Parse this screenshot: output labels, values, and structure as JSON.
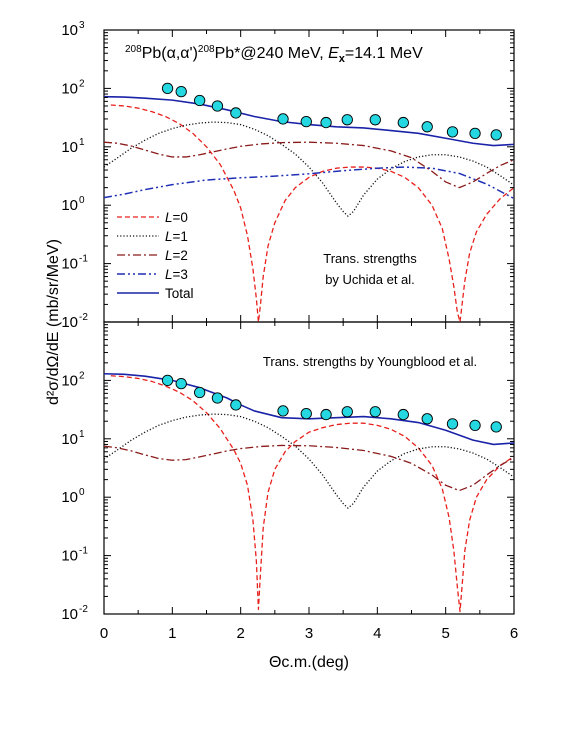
{
  "figure": {
    "ylabel": "d²σ/dΩ/dE (mb/sr/MeV)",
    "xlabel": "Θc.m.(deg)"
  },
  "colors": {
    "L0": "#e8201c",
    "L1": "#111111",
    "L2": "#8b1a1a",
    "L3": "#1f2fb5",
    "total": "#1a23a8",
    "data_fill": "#24d7e0",
    "data_stroke": "#000000"
  },
  "chart_data": [
    {
      "type": "line",
      "title": "208Pb(α,α')208Pb*@240 MeV, Ex=14.1 MeV",
      "title_parts": {
        "pre_mass": "208",
        "reaction": "Pb(α,α')",
        "post_mass": "208",
        "rest": "Pb*@240 MeV, ",
        "ex_E": "E",
        "ex_sub": "x",
        "ex_value": "=14.1 MeV"
      },
      "annotation": [
        "Trans. strengths",
        "by Uchida et al."
      ],
      "xlim": [
        0,
        6
      ],
      "ylim": [
        0.01,
        1000
      ],
      "yscale": "log",
      "x_ticks": [
        "0",
        "1",
        "2",
        "3",
        "4",
        "5",
        "6"
      ],
      "y_ticks": [
        {
          "base": "10",
          "exp": "-2"
        },
        {
          "base": "10",
          "exp": "-1"
        },
        {
          "base": "10",
          "exp": "0"
        },
        {
          "base": "10",
          "exp": "1"
        },
        {
          "base": "10",
          "exp": "2"
        },
        {
          "base": "10",
          "exp": "3"
        }
      ],
      "legend": {
        "position": "lower-left",
        "entries": [
          {
            "key": "L0",
            "italic": "L",
            "text": "=0"
          },
          {
            "key": "L1",
            "italic": "L",
            "text": "=1"
          },
          {
            "key": "L2",
            "italic": "L",
            "text": "=2"
          },
          {
            "key": "L3",
            "italic": "L",
            "text": "=3"
          },
          {
            "key": "total",
            "italic": "",
            "text": "Total"
          }
        ]
      },
      "data_points": {
        "x": [
          0.93,
          1.13,
          1.4,
          1.66,
          1.93,
          2.62,
          2.96,
          3.25,
          3.56,
          3.97,
          4.38,
          4.73,
          5.1,
          5.43,
          5.74
        ],
        "y": [
          100,
          88,
          62,
          50,
          38,
          30,
          27,
          26,
          29,
          29,
          26,
          22,
          18,
          17,
          16
        ]
      },
      "series": [
        {
          "key": "L0",
          "x": [
            0.1,
            0.3,
            0.5,
            0.7,
            0.9,
            1.1,
            1.3,
            1.5,
            1.7,
            1.9,
            2.0,
            2.1,
            2.18,
            2.23,
            2.26,
            2.29,
            2.33,
            2.4,
            2.5,
            2.65,
            2.8,
            3.0,
            3.2,
            3.4,
            3.6,
            3.8,
            4.0,
            4.2,
            4.4,
            4.6,
            4.8,
            4.95,
            5.05,
            5.12,
            5.17,
            5.21,
            5.24,
            5.28,
            5.35,
            5.45,
            5.6,
            5.8,
            6.0
          ],
          "y": [
            52,
            50,
            46,
            40,
            33,
            25,
            17,
            10,
            5,
            1.8,
            0.9,
            0.3,
            0.08,
            0.025,
            0.01,
            0.02,
            0.06,
            0.2,
            0.5,
            1.2,
            2.0,
            3.0,
            3.8,
            4.3,
            4.5,
            4.5,
            4.3,
            3.8,
            3.0,
            2.0,
            1.0,
            0.4,
            0.12,
            0.04,
            0.015,
            0.01,
            0.02,
            0.05,
            0.15,
            0.35,
            0.7,
            1.3,
            2.0
          ]
        },
        {
          "key": "L1",
          "x": [
            0.0,
            0.2,
            0.4,
            0.6,
            0.8,
            1.0,
            1.2,
            1.4,
            1.6,
            1.8,
            2.0,
            2.2,
            2.4,
            2.6,
            2.8,
            3.0,
            3.2,
            3.4,
            3.5,
            3.57,
            3.65,
            3.8,
            4.0,
            4.2,
            4.4,
            4.6,
            4.8,
            5.0,
            5.2,
            5.4,
            5.6,
            5.8,
            6.0
          ],
          "y": [
            4.5,
            6.5,
            9.5,
            13,
            17,
            20.5,
            23.5,
            25.5,
            26.5,
            26,
            24,
            20,
            15.5,
            11,
            7.5,
            4.5,
            2.4,
            1.1,
            0.78,
            0.65,
            0.78,
            1.5,
            2.8,
            4.2,
            5.6,
            6.7,
            7.3,
            7.3,
            6.7,
            5.7,
            4.5,
            3.2,
            2.2
          ]
        },
        {
          "key": "L2",
          "x": [
            0.0,
            0.2,
            0.4,
            0.6,
            0.8,
            1.0,
            1.2,
            1.4,
            1.6,
            1.8,
            2.0,
            2.3,
            2.6,
            3.0,
            3.4,
            3.8,
            4.2,
            4.5,
            4.8,
            5.0,
            5.2,
            5.4,
            5.6,
            5.8,
            6.0
          ],
          "y": [
            12,
            11.5,
            10.3,
            8.8,
            7.5,
            6.7,
            6.7,
            7.3,
            8.2,
            9.2,
            10.2,
            11.2,
            11.8,
            12,
            11.5,
            10.5,
            8.5,
            6.5,
            3.8,
            2.5,
            2.0,
            2.5,
            3.5,
            4.8,
            6.0
          ]
        },
        {
          "key": "L3",
          "x": [
            0.0,
            0.3,
            0.6,
            1.0,
            1.5,
            2.0,
            2.5,
            3.0,
            3.5,
            4.0,
            4.4,
            4.8,
            5.2,
            5.6,
            6.0
          ],
          "y": [
            1.35,
            1.55,
            1.85,
            2.25,
            2.7,
            2.95,
            3.15,
            3.45,
            3.9,
            4.3,
            4.5,
            4.3,
            3.5,
            2.3,
            1.3
          ]
        },
        {
          "key": "total",
          "x": [
            0.0,
            0.3,
            0.6,
            1.0,
            1.4,
            1.8,
            2.2,
            2.6,
            3.0,
            3.4,
            3.8,
            4.2,
            4.6,
            5.0,
            5.4,
            5.7,
            6.0
          ],
          "y": [
            72,
            71,
            68,
            63,
            54,
            43,
            33,
            27,
            24,
            22,
            21,
            19,
            17,
            14,
            11.5,
            10.5,
            11
          ]
        }
      ]
    },
    {
      "type": "line",
      "title": "",
      "annotation": [
        "Trans. strengths by Youngblood et al."
      ],
      "xlim": [
        0,
        6
      ],
      "ylim": [
        0.01,
        1000
      ],
      "yscale": "log",
      "x_ticks": [
        "0",
        "1",
        "2",
        "3",
        "4",
        "5",
        "6"
      ],
      "y_ticks": [
        {
          "base": "10",
          "exp": "-2"
        },
        {
          "base": "10",
          "exp": "-1"
        },
        {
          "base": "10",
          "exp": "0"
        },
        {
          "base": "10",
          "exp": "1"
        },
        {
          "base": "10",
          "exp": "2"
        }
      ],
      "data_points": {
        "x": [
          0.93,
          1.13,
          1.4,
          1.66,
          1.93,
          2.62,
          2.96,
          3.25,
          3.56,
          3.97,
          4.38,
          4.73,
          5.1,
          5.43,
          5.74
        ],
        "y": [
          100,
          88,
          62,
          50,
          38,
          30,
          27,
          26,
          29,
          29,
          26,
          22,
          18,
          17,
          16
        ]
      },
      "series": [
        {
          "key": "L0",
          "x": [
            0.1,
            0.3,
            0.5,
            0.7,
            0.9,
            1.1,
            1.3,
            1.5,
            1.7,
            1.9,
            2.0,
            2.1,
            2.18,
            2.23,
            2.26,
            2.29,
            2.33,
            2.4,
            2.5,
            2.65,
            2.8,
            3.0,
            3.2,
            3.4,
            3.6,
            3.8,
            4.0,
            4.2,
            4.4,
            4.6,
            4.8,
            4.95,
            5.05,
            5.12,
            5.17,
            5.21,
            5.24,
            5.28,
            5.35,
            5.45,
            5.6,
            5.8,
            6.0
          ],
          "y": [
            120,
            116,
            108,
            96,
            80,
            63,
            45,
            28,
            15,
            6.5,
            3.8,
            1.6,
            0.4,
            0.08,
            0.012,
            0.05,
            0.3,
            1.2,
            3.0,
            6.0,
            9.0,
            13,
            15.5,
            17.5,
            18.5,
            18.5,
            17,
            14.5,
            11,
            7,
            3.5,
            1.4,
            0.45,
            0.12,
            0.03,
            0.011,
            0.03,
            0.12,
            0.4,
            1.0,
            2.0,
            3.5,
            5.0
          ]
        },
        {
          "key": "L1",
          "x": [
            0.0,
            0.2,
            0.4,
            0.6,
            0.8,
            1.0,
            1.2,
            1.4,
            1.6,
            1.8,
            2.0,
            2.2,
            2.4,
            2.6,
            2.8,
            3.0,
            3.2,
            3.4,
            3.5,
            3.57,
            3.65,
            3.8,
            4.0,
            4.2,
            4.4,
            4.6,
            4.8,
            5.0,
            5.2,
            5.4,
            5.6,
            5.8,
            6.0
          ],
          "y": [
            4.5,
            6.5,
            9.5,
            13,
            17,
            20.5,
            23.5,
            25.5,
            26.5,
            26,
            24,
            20,
            15.5,
            11,
            7.5,
            4.5,
            2.4,
            1.1,
            0.78,
            0.65,
            0.78,
            1.5,
            2.8,
            4.2,
            5.6,
            6.7,
            7.3,
            7.3,
            6.7,
            5.7,
            4.5,
            3.2,
            2.2
          ]
        },
        {
          "key": "L2",
          "x": [
            0.0,
            0.2,
            0.4,
            0.6,
            0.8,
            1.0,
            1.2,
            1.4,
            1.6,
            1.8,
            2.0,
            2.3,
            2.6,
            3.0,
            3.4,
            3.8,
            4.2,
            4.5,
            4.8,
            5.0,
            5.2,
            5.4,
            5.6,
            5.8,
            6.0
          ],
          "y": [
            7.5,
            7.0,
            6.2,
            5.3,
            4.6,
            4.3,
            4.4,
            4.9,
            5.5,
            6.2,
            6.8,
            7.4,
            7.7,
            7.6,
            7.1,
            6.3,
            5.0,
            3.8,
            2.4,
            1.6,
            1.3,
            1.6,
            2.4,
            3.5,
            4.8
          ]
        },
        {
          "key": "total",
          "x": [
            0.0,
            0.3,
            0.6,
            1.0,
            1.4,
            1.8,
            2.0,
            2.2,
            2.6,
            3.0,
            3.4,
            3.8,
            4.2,
            4.6,
            5.0,
            5.4,
            5.7,
            6.0
          ],
          "y": [
            130,
            127,
            118,
            100,
            75,
            50,
            38,
            30,
            23,
            22,
            23,
            24,
            22,
            19,
            14,
            9.5,
            8,
            8.5
          ]
        }
      ]
    }
  ]
}
